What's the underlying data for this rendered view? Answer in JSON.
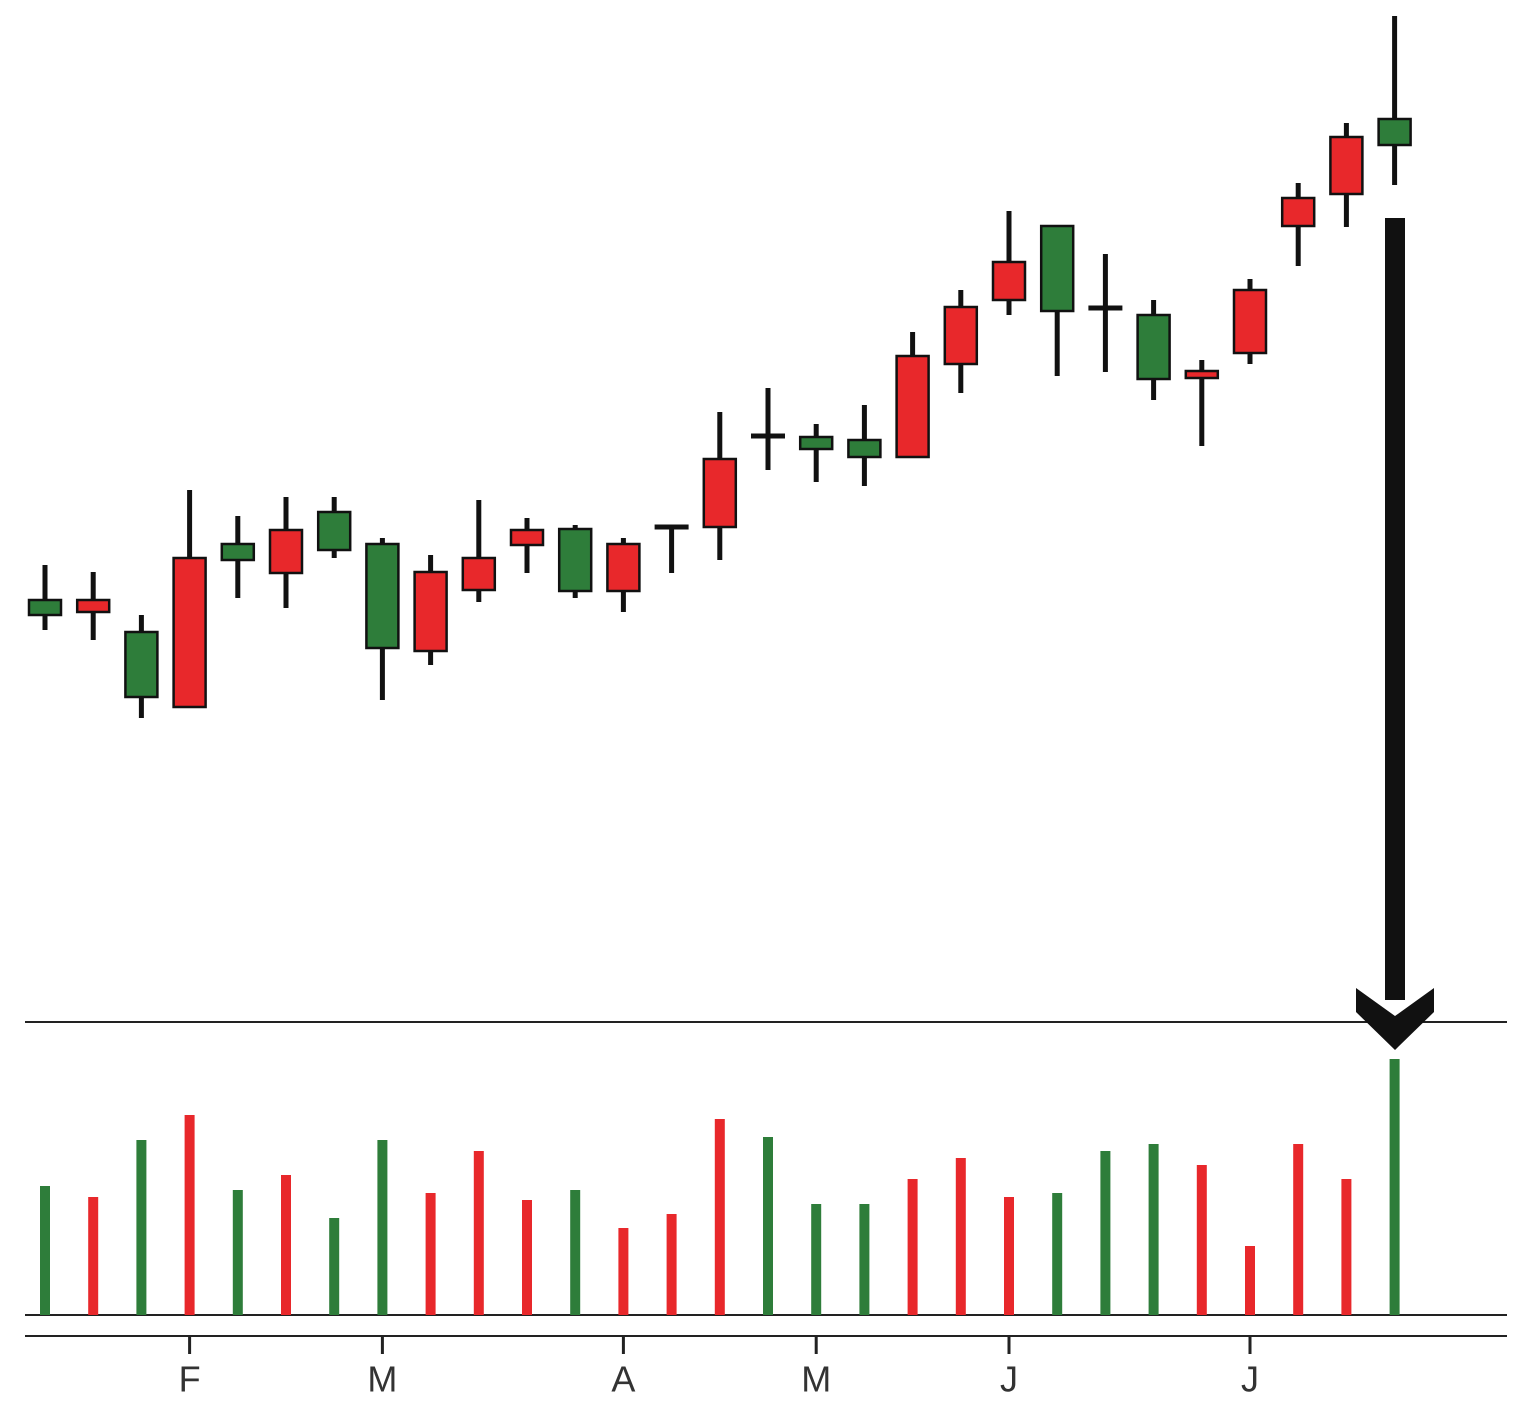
{
  "chart_data": {
    "type": "candlestick",
    "categories": [
      null,
      null,
      null,
      "F",
      null,
      null,
      null,
      "M",
      null,
      null,
      null,
      null,
      "A",
      null,
      null,
      null,
      "M",
      null,
      null,
      null,
      "J",
      null,
      null,
      null,
      null,
      "J",
      null,
      null,
      null
    ],
    "open": [
      48.5,
      50,
      40.3,
      54.2,
      54,
      57,
      55,
      45.2,
      52.8,
      54.2,
      57,
      50.9,
      55.6,
      57.3,
      64.1,
      66.4,
      65.1,
      64.3,
      74.4,
      79.3,
      83.8,
      78.9,
      79.2,
      72.1,
      72.9,
      81,
      90.2,
      96.3,
      95.5
    ],
    "high": [
      53.5,
      52.8,
      48.5,
      61,
      58.4,
      60.3,
      60.3,
      56.2,
      54.5,
      60,
      58.2,
      57.5,
      56.2,
      57.5,
      68.8,
      71.2,
      67.6,
      69.5,
      76.8,
      81,
      88.9,
      87.4,
      84.6,
      80,
      74,
      82.1,
      91.7,
      97.7,
      108.4
    ],
    "low": [
      47,
      46,
      38.2,
      39.3,
      50.2,
      49.2,
      54.2,
      40,
      43.5,
      49.8,
      52.7,
      50.2,
      48.8,
      52.7,
      54,
      63,
      61.8,
      61.4,
      64.3,
      70.7,
      78.5,
      72.4,
      72.8,
      70,
      65.4,
      73.6,
      83.4,
      87.3,
      91.5
    ],
    "close": [
      50,
      48.8,
      46.8,
      39.3,
      55.6,
      52.7,
      58.8,
      55.6,
      44.9,
      51,
      55.5,
      57.1,
      50.9,
      57.3,
      57.3,
      66.4,
      66.3,
      66,
      64.3,
      73.6,
      80,
      87.4,
      79.2,
      78.5,
      72.2,
      74.7,
      87.4,
      90.6,
      98.1
    ],
    "up_color": "#2e7d3a",
    "down_color": "#e8282b",
    "ylim": [
      0,
      110
    ],
    "volume": {
      "values": [
        129,
        118,
        175,
        200,
        125,
        140,
        97,
        175,
        122,
        164,
        115,
        125,
        87,
        101,
        196,
        178,
        111,
        111,
        136,
        157,
        118,
        122,
        164,
        171,
        150,
        69,
        171,
        136,
        256
      ],
      "colors": [
        "#2e7d3a",
        "#e8282b",
        "#2e7d3a",
        "#e8282b",
        "#2e7d3a",
        "#e8282b",
        "#2e7d3a",
        "#2e7d3a",
        "#e8282b",
        "#e8282b",
        "#e8282b",
        "#2e7d3a",
        "#e8282b",
        "#e8282b",
        "#e8282b",
        "#2e7d3a",
        "#2e7d3a",
        "#2e7d3a",
        "#e8282b",
        "#e8282b",
        "#e8282b",
        "#2e7d3a",
        "#2e7d3a",
        "#2e7d3a",
        "#e8282b",
        "#e8282b",
        "#e8282b",
        "#e8282b",
        "#2e7d3a"
      ],
      "ylim": [
        0,
        300
      ]
    }
  }
}
